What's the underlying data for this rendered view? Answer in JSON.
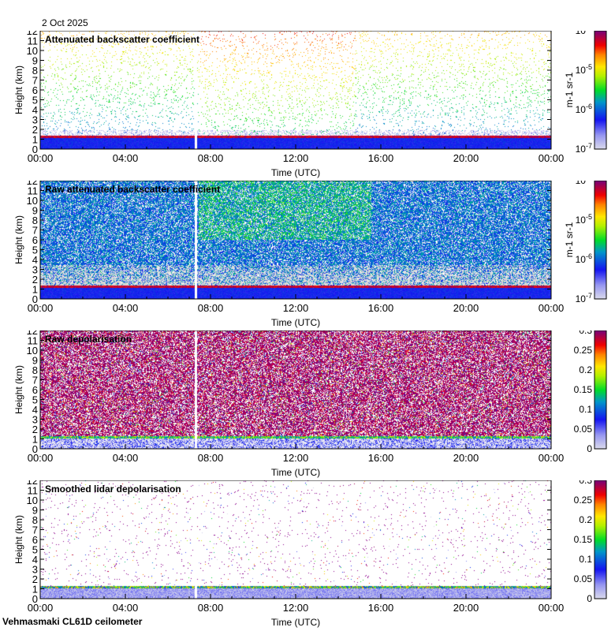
{
  "date": "2 Oct 2025",
  "footer": "Vehmasmaki CL61D ceilometer",
  "chart_data": [
    {
      "type": "heatmap",
      "title": "Attenuated backscatter coefficient",
      "ylabel": "Height (km)",
      "xlabel": "Time (UTC)",
      "xticks": [
        "00:00",
        "04:00",
        "08:00",
        "12:00",
        "16:00",
        "20:00",
        "00:00"
      ],
      "ylim": [
        0,
        12
      ],
      "yticks": [
        "0",
        "1",
        "2",
        "3",
        "4",
        "5",
        "6",
        "7",
        "8",
        "9",
        "10",
        "11",
        "12"
      ],
      "colorbar": {
        "scale": "log",
        "label": "m-1 sr-1",
        "ticks": [
          "10-7",
          "10-6",
          "10-5",
          "10-4"
        ],
        "range": [
          1e-07,
          0.0001
        ]
      },
      "features": {
        "cloud_base_km": 1.3,
        "data_gap_utc": "07:15",
        "style": "sparse"
      }
    },
    {
      "type": "heatmap",
      "title": "Raw attenuated backscatter coefficient",
      "ylabel": "Height (km)",
      "xlabel": "Time (UTC)",
      "xticks": [
        "00:00",
        "04:00",
        "08:00",
        "12:00",
        "16:00",
        "20:00",
        "00:00"
      ],
      "ylim": [
        0,
        12
      ],
      "yticks": [
        "0",
        "1",
        "2",
        "3",
        "4",
        "5",
        "6",
        "7",
        "8",
        "9",
        "10",
        "11",
        "12"
      ],
      "colorbar": {
        "scale": "log",
        "label": "m-1 sr-1",
        "ticks": [
          "10-7",
          "10-6",
          "10-5",
          "10-4"
        ],
        "range": [
          1e-07,
          0.0001
        ]
      },
      "features": {
        "cloud_base_km": 1.3,
        "data_gap_utc": "07:15",
        "style": "dense"
      }
    },
    {
      "type": "heatmap",
      "title": "Raw depolarisation",
      "ylabel": "Height (km)",
      "xlabel": "Time (UTC)",
      "xticks": [
        "00:00",
        "04:00",
        "08:00",
        "12:00",
        "16:00",
        "20:00",
        "00:00"
      ],
      "ylim": [
        0,
        12
      ],
      "yticks": [
        "0",
        "1",
        "2",
        "3",
        "4",
        "5",
        "6",
        "7",
        "8",
        "9",
        "10",
        "11",
        "12"
      ],
      "colorbar": {
        "scale": "linear",
        "label": "",
        "ticks": [
          "0",
          "0.05",
          "0.1",
          "0.15",
          "0.2",
          "0.25",
          "0.3"
        ],
        "range": [
          0,
          0.3
        ]
      },
      "features": {
        "cloud_base_km": 1.3,
        "data_gap_utc": "07:15",
        "style": "noise"
      }
    },
    {
      "type": "heatmap",
      "title": "Smoothed lidar depolarisation",
      "ylabel": "Height (km)",
      "xlabel": "Time (UTC)",
      "xticks": [
        "00:00",
        "04:00",
        "08:00",
        "12:00",
        "16:00",
        "20:00",
        "00:00"
      ],
      "ylim": [
        0,
        12
      ],
      "yticks": [
        "0",
        "1",
        "2",
        "3",
        "4",
        "5",
        "6",
        "7",
        "8",
        "9",
        "10",
        "11",
        "12"
      ],
      "colorbar": {
        "scale": "linear",
        "label": "",
        "ticks": [
          "0",
          "0.05",
          "0.1",
          "0.15",
          "0.2",
          "0.25",
          "0.3"
        ],
        "range": [
          0,
          0.3
        ]
      },
      "features": {
        "cloud_base_km": 1.3,
        "data_gap_utc": "07:15",
        "style": "sparse-depol"
      }
    }
  ]
}
